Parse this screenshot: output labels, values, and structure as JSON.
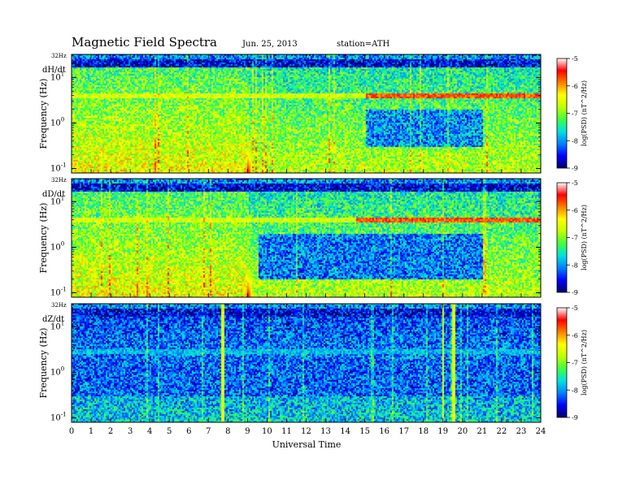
{
  "header": {
    "title": "Magnetic  Field  Spectra",
    "date": "Jun. 25, 2013",
    "station": "station=ATH"
  },
  "colors": {
    "colormap": [
      "#000066",
      "#0000ff",
      "#0080ff",
      "#00e0e0",
      "#40ff40",
      "#c0ff00",
      "#ffff00",
      "#ff8000",
      "#ff0000",
      "#ffffff"
    ],
    "frame": "#000000",
    "background": "#ffffff"
  },
  "chart_data": [
    {
      "type": "heatmap",
      "panel_label": "dH/dt",
      "ylabel": "Frequency  (Hz)",
      "xlabel": "",
      "y_scale": "log",
      "y_ticks": [
        {
          "value": 0.1,
          "base": "10",
          "exp": "-1"
        },
        {
          "value": 1,
          "base": "10",
          "exp": "0"
        },
        {
          "value": 10,
          "base": "10",
          "exp": "1"
        }
      ],
      "top_label": "32Hz",
      "ylim_hz": [
        0.08,
        32
      ],
      "xlim_hours": [
        0,
        24
      ],
      "colorbar": {
        "label": "log(PSD) (nT^2/Hz)",
        "ticks": [
          "-5",
          "-6",
          "-7",
          "-8",
          "-9"
        ],
        "range": [
          -9,
          -5
        ]
      },
      "features": [
        {
          "name": "line near 4 Hz",
          "freq_hz": 4.2,
          "hours": [
            0,
            24
          ],
          "peak_hours": [
            15,
            24
          ],
          "level": -6.0
        },
        {
          "name": "burst",
          "hours": [
            8.7,
            9.3
          ],
          "freq_hz": [
            0.08,
            0.4
          ],
          "level": -5.2
        },
        {
          "name": "burst",
          "hours": [
            3.8,
            4.0
          ],
          "freq_hz": [
            0.08,
            0.2
          ],
          "level": -6.5
        },
        {
          "name": "quiet",
          "hours": [
            15,
            21
          ],
          "freq_hz": [
            0.3,
            2
          ],
          "level": -8.3
        }
      ]
    },
    {
      "type": "heatmap",
      "panel_label": "dD/dt",
      "ylabel": "Frequency  (Hz)",
      "xlabel": "",
      "y_scale": "log",
      "y_ticks": [
        {
          "value": 0.1,
          "base": "10",
          "exp": "-1"
        },
        {
          "value": 1,
          "base": "10",
          "exp": "0"
        },
        {
          "value": 10,
          "base": "10",
          "exp": "1"
        }
      ],
      "top_label": "32Hz",
      "ylim_hz": [
        0.08,
        32
      ],
      "xlim_hours": [
        0,
        24
      ],
      "colorbar": {
        "label": "log(PSD) (nT^2/Hz)",
        "ticks": [
          "-5",
          "-6",
          "-7",
          "-8",
          "-9"
        ],
        "range": [
          -9,
          -5
        ]
      },
      "features": [
        {
          "name": "line near 4 Hz",
          "freq_hz": 4.2,
          "hours": [
            0,
            24
          ],
          "peak_hours": [
            14.5,
            24
          ],
          "level": -6.0
        },
        {
          "name": "burst",
          "hours": [
            8.7,
            9.3
          ],
          "freq_hz": [
            0.08,
            0.4
          ],
          "level": -5.2
        },
        {
          "name": "quiet",
          "hours": [
            9.5,
            21
          ],
          "freq_hz": [
            0.2,
            2
          ],
          "level": -8.4
        }
      ]
    },
    {
      "type": "heatmap",
      "panel_label": "dZ/dt",
      "ylabel": "Frequency  (Hz)",
      "xlabel": "Universal Time",
      "y_scale": "log",
      "y_ticks": [
        {
          "value": 0.1,
          "base": "10",
          "exp": "-1"
        },
        {
          "value": 1,
          "base": "10",
          "exp": "0"
        },
        {
          "value": 10,
          "base": "10",
          "exp": "1"
        }
      ],
      "top_label": "32Hz",
      "ylim_hz": [
        0.08,
        32
      ],
      "xlim_hours": [
        0,
        24
      ],
      "x_ticks": [
        "0",
        "1",
        "2",
        "3",
        "4",
        "5",
        "6",
        "7",
        "8",
        "9",
        "10",
        "11",
        "12",
        "13",
        "14",
        "15",
        "16",
        "17",
        "18",
        "19",
        "20",
        "21",
        "22",
        "23",
        "24"
      ],
      "colorbar": {
        "label": "log(PSD) (nT^2/Hz)",
        "ticks": [
          "-5",
          "-6",
          "-7",
          "-8",
          "-9"
        ],
        "range": [
          -9,
          -5
        ]
      },
      "features": [
        {
          "name": "line near 3 Hz",
          "freq_hz": 3.0,
          "hours": [
            0,
            24
          ],
          "level": -7.3
        },
        {
          "name": "vertical spikes",
          "hours": [
            7.7,
            19.0,
            19.5
          ],
          "level": -6.8
        },
        {
          "name": "quiet",
          "hours": [
            0,
            24
          ],
          "freq_hz": [
            0.3,
            2
          ],
          "level": -8.5
        }
      ]
    }
  ]
}
